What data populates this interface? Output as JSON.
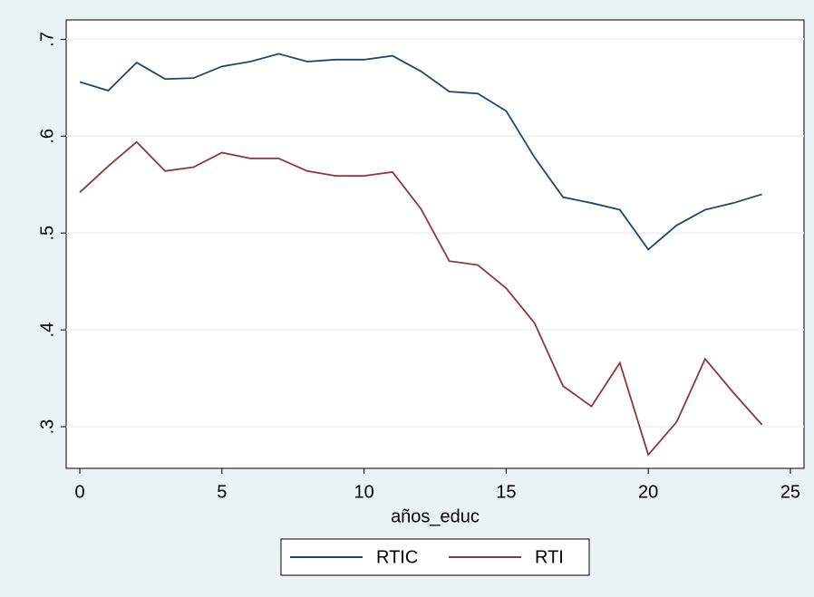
{
  "chart_data": {
    "type": "line",
    "x_label": "años_educ",
    "x": [
      0,
      1,
      2,
      3,
      4,
      5,
      6,
      7,
      8,
      9,
      10,
      11,
      12,
      13,
      14,
      15,
      16,
      17,
      18,
      19,
      20,
      21,
      22,
      23,
      24
    ],
    "series": [
      {
        "name": "RTIC",
        "color": "#1a476f",
        "values": [
          0.656,
          0.647,
          0.676,
          0.659,
          0.66,
          0.672,
          0.677,
          0.685,
          0.677,
          0.679,
          0.679,
          0.683,
          0.667,
          0.646,
          0.644,
          0.626,
          0.578,
          0.537,
          0.531,
          0.524,
          0.483,
          0.508,
          0.524,
          0.531,
          0.54
        ]
      },
      {
        "name": "RTI",
        "color": "#90353b",
        "values": [
          0.542,
          0.569,
          0.594,
          0.564,
          0.568,
          0.583,
          0.577,
          0.577,
          0.564,
          0.559,
          0.559,
          0.563,
          0.525,
          0.471,
          0.467,
          0.443,
          0.407,
          0.342,
          0.321,
          0.366,
          0.271,
          0.305,
          0.37,
          0.335,
          0.302
        ]
      }
    ],
    "xlim": [
      -0.48,
      25.48
    ],
    "xticks": [
      0,
      5,
      10,
      15,
      20,
      25
    ],
    "ylim": [
      0.257,
      0.72
    ],
    "yticks": [
      {
        "value": 0.3,
        "label": ".3"
      },
      {
        "value": 0.4,
        "label": ".4"
      },
      {
        "value": 0.5,
        "label": ".5"
      },
      {
        "value": 0.6,
        "label": ".6"
      },
      {
        "value": 0.7,
        "label": ".7"
      }
    ],
    "grid": true,
    "legend": "bottom"
  }
}
